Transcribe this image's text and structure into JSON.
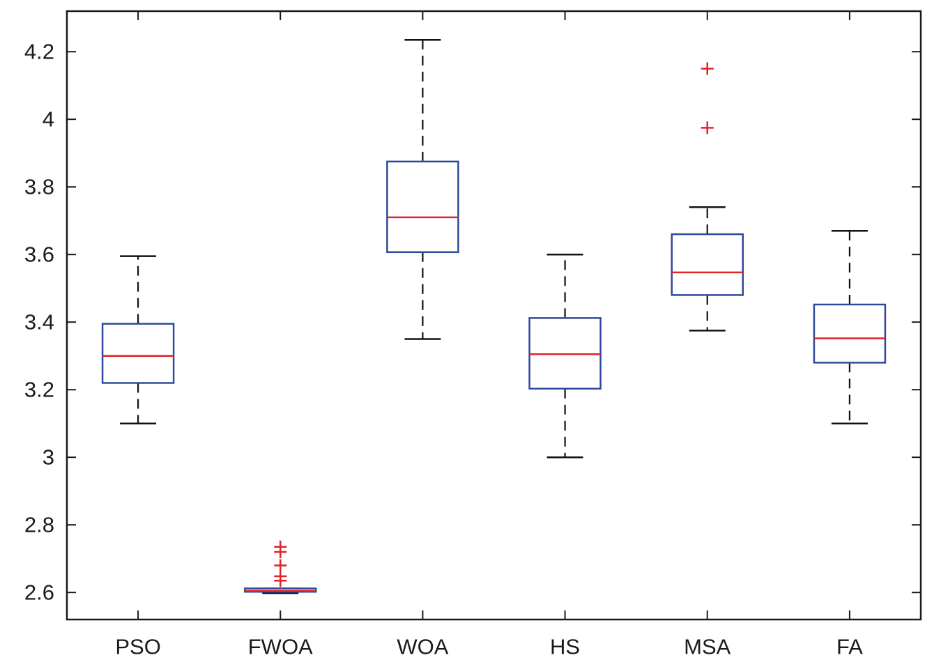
{
  "chart_data": {
    "type": "box",
    "title": "",
    "xlabel": "",
    "ylabel": "",
    "ylim": [
      2.52,
      4.32
    ],
    "yticks": [
      2.6,
      2.8,
      3,
      3.2,
      3.4,
      3.6,
      3.8,
      4,
      4.2
    ],
    "ytick_labels": [
      "2.6",
      "2.8",
      "3",
      "3.2",
      "3.4",
      "3.6",
      "3.8",
      "4",
      "4.2"
    ],
    "categories": [
      "PSO",
      "FWOA",
      "WOA",
      "HS",
      "MSA",
      "FA"
    ],
    "boxes": [
      {
        "name": "PSO",
        "whisker_low": 3.1,
        "q1": 3.22,
        "median": 3.3,
        "q3": 3.395,
        "whisker_high": 3.595,
        "outliers": []
      },
      {
        "name": "FWOA",
        "whisker_low": 2.598,
        "q1": 2.602,
        "median": 2.605,
        "q3": 2.612,
        "whisker_high": 2.612,
        "outliers": [
          2.635,
          2.648,
          2.68,
          2.72,
          2.735
        ]
      },
      {
        "name": "WOA",
        "whisker_low": 3.35,
        "q1": 3.607,
        "median": 3.71,
        "q3": 3.875,
        "whisker_high": 4.235,
        "outliers": []
      },
      {
        "name": "HS",
        "whisker_low": 3.0,
        "q1": 3.203,
        "median": 3.305,
        "q3": 3.412,
        "whisker_high": 3.6,
        "outliers": []
      },
      {
        "name": "MSA",
        "whisker_low": 3.375,
        "q1": 3.48,
        "median": 3.547,
        "q3": 3.66,
        "whisker_high": 3.74,
        "outliers": [
          3.975,
          4.15
        ]
      },
      {
        "name": "FA",
        "whisker_low": 3.1,
        "q1": 3.28,
        "median": 3.352,
        "q3": 3.452,
        "whisker_high": 3.67,
        "outliers": []
      }
    ],
    "colors": {
      "box": "#2e4a9c",
      "median": "#e32228",
      "whisker": "#111111",
      "outlier": "#e32228",
      "axes": "#1a1a1a"
    }
  }
}
